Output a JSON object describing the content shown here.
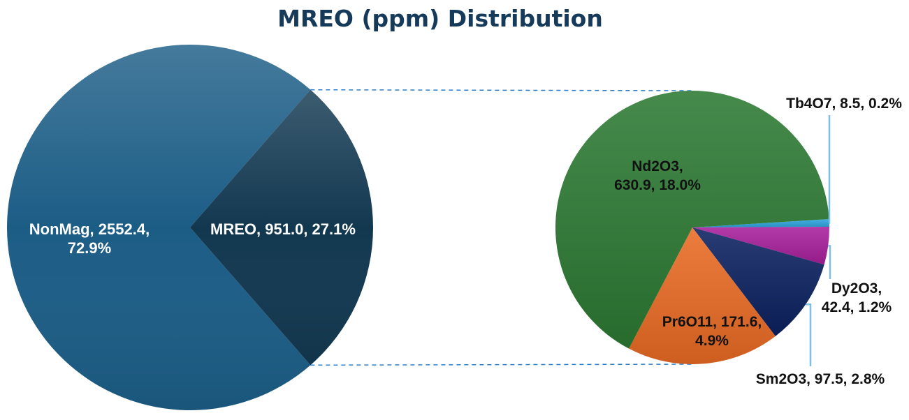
{
  "chart_data": {
    "type": "pie",
    "subtype": "pie-of-pie",
    "title": "MREO (ppm) Distribution",
    "main_pie": [
      {
        "name": "NonMag",
        "value": 2552.4,
        "percent": 72.9,
        "color": "#1c5d86",
        "label_lines": [
          "NonMag, 2552.4,",
          "72.9%"
        ]
      },
      {
        "name": "MREO",
        "value": 951.0,
        "percent": 27.1,
        "color": "#123850",
        "label_lines": [
          "MREO, 951.0, 27.1%"
        ]
      }
    ],
    "secondary_pie": [
      {
        "name": "Nd2O3",
        "value": 630.9,
        "percent": 18.0,
        "color": "#2c7a33",
        "label_lines": [
          "Nd2O3,",
          "630.9, 18.0%"
        ]
      },
      {
        "name": "Pr6O11",
        "value": 171.6,
        "percent": 4.9,
        "color": "#ea6b24",
        "label_lines": [
          "Pr6O11, 171.6,",
          "4.9%"
        ]
      },
      {
        "name": "Sm2O3",
        "value": 97.5,
        "percent": 2.8,
        "color": "#0b2260",
        "label_lines": [
          "Sm2O3, 97.5, 2.8%"
        ]
      },
      {
        "name": "Dy2O3",
        "value": 42.4,
        "percent": 1.2,
        "color": "#a8209c",
        "label_lines": [
          "Dy2O3,",
          "42.4, 1.2%"
        ]
      },
      {
        "name": "Tb4O7",
        "value": 8.5,
        "percent": 0.2,
        "color": "#2da3dc",
        "label_lines": [
          "Tb4O7, 8.5, 0.2%"
        ]
      }
    ],
    "connector_color": "#2f7fc8",
    "leader_color": "#7fbfe6"
  }
}
